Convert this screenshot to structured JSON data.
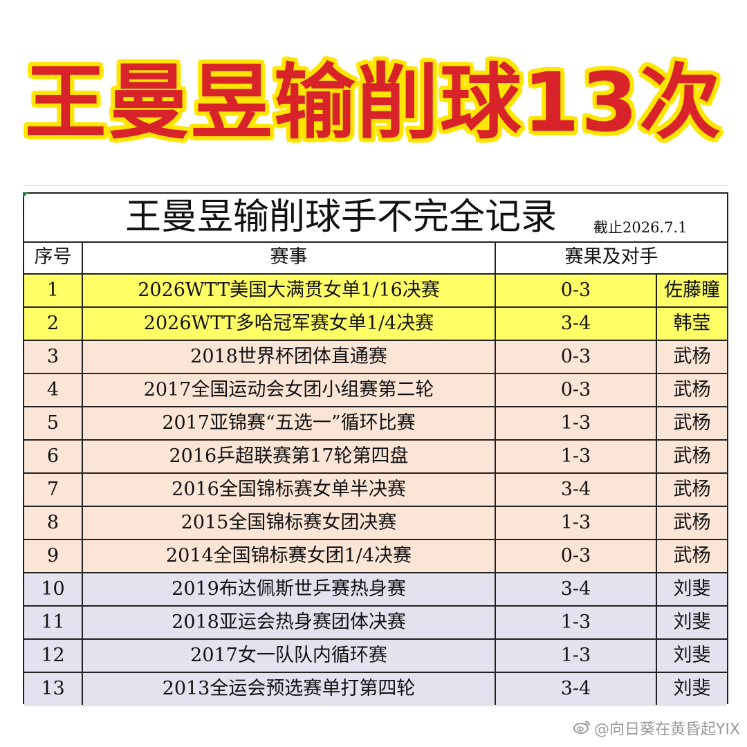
{
  "headline": "王曼昱输削球13次",
  "table": {
    "title": "王曼昱输削球手不完全记录",
    "cutoff_note": "截止2026.7.1",
    "headers": {
      "no": "序号",
      "event": "赛事",
      "result_opponent": "赛果及对手"
    },
    "rows": [
      {
        "no": "1",
        "event": "2026WTT美国大满贯女单1/16决赛",
        "score": "0-3",
        "opponent": "佐藤瞳",
        "group": "yellow"
      },
      {
        "no": "2",
        "event": "2026WTT多哈冠军赛女单1/4决赛",
        "score": "3-4",
        "opponent": "韩莹",
        "group": "yellow"
      },
      {
        "no": "3",
        "event": "2018世界杯团体直通赛",
        "score": "0-3",
        "opponent": "武杨",
        "group": "peach"
      },
      {
        "no": "4",
        "event": "2017全国运动会女团小组赛第二轮",
        "score": "0-3",
        "opponent": "武杨",
        "group": "peach"
      },
      {
        "no": "5",
        "event": "2017亚锦赛“五选一”循环比赛",
        "score": "1-3",
        "opponent": "武杨",
        "group": "peach"
      },
      {
        "no": "6",
        "event": "2016乒超联赛第17轮第四盘",
        "score": "1-3",
        "opponent": "武杨",
        "group": "peach"
      },
      {
        "no": "7",
        "event": "2016全国锦标赛女单半决赛",
        "score": "3-4",
        "opponent": "武杨",
        "group": "peach"
      },
      {
        "no": "8",
        "event": "2015全国锦标赛女团决赛",
        "score": "1-3",
        "opponent": "武杨",
        "group": "peach"
      },
      {
        "no": "9",
        "event": "2014全国锦标赛女团1/4决赛",
        "score": "0-3",
        "opponent": "武杨",
        "group": "peach"
      },
      {
        "no": "10",
        "event": "2019布达佩斯世乒赛热身赛",
        "score": "3-4",
        "opponent": "刘斐",
        "group": "lavender"
      },
      {
        "no": "11",
        "event": "2018亚运会热身赛团体决赛",
        "score": "1-3",
        "opponent": "刘斐",
        "group": "lavender"
      },
      {
        "no": "12",
        "event": "2017女一队队内循环赛",
        "score": "1-3",
        "opponent": "刘斐",
        "group": "lavender"
      },
      {
        "no": "13",
        "event": "2013全运会预选赛单打第四轮",
        "score": "3-4",
        "opponent": "刘斐",
        "group": "lavender"
      }
    ]
  },
  "colors": {
    "headline_text": "#d9232a",
    "headline_outline": "#ffe600",
    "yellow": "#ffff66",
    "peach": "#fbe5d6",
    "lavender": "#e4e2ef"
  },
  "watermark": {
    "icon": "weibo-icon",
    "text": "@向日葵在黄昏起YIX"
  }
}
